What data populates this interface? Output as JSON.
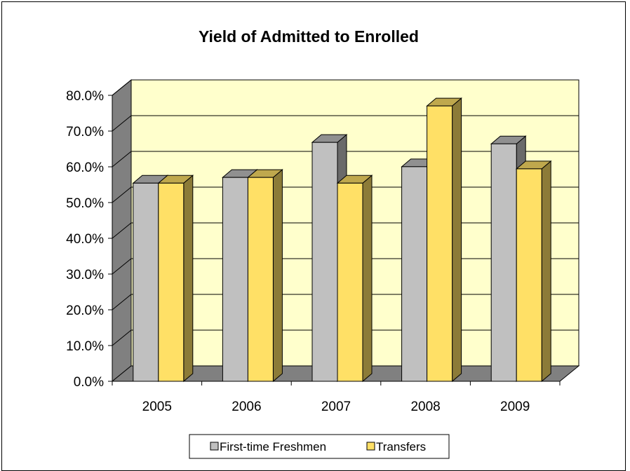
{
  "chart_data": {
    "type": "bar",
    "title": "Yield of Admitted to Enrolled",
    "categories": [
      "2005",
      "2006",
      "2007",
      "2008",
      "2009"
    ],
    "series": [
      {
        "name": "First-time Freshmen",
        "values": [
          57.0,
          58.6,
          68.4,
          61.6,
          68.0
        ],
        "color": "#c0c0c0"
      },
      {
        "name": "Transfers",
        "values": [
          57.0,
          58.6,
          57.0,
          78.6,
          61.0
        ],
        "color": "#ffe066"
      }
    ],
    "ylim": [
      0,
      80
    ],
    "y_ticks": [
      "0.0%",
      "10.0%",
      "20.0%",
      "30.0%",
      "40.0%",
      "50.0%",
      "60.0%",
      "70.0%",
      "80.0%"
    ],
    "xlabel": "",
    "ylabel": "",
    "grid": true,
    "legend_position": "bottom",
    "wall_color": "#ffffcc",
    "side_wall_color": "#808080",
    "floor_color": "#808080"
  }
}
